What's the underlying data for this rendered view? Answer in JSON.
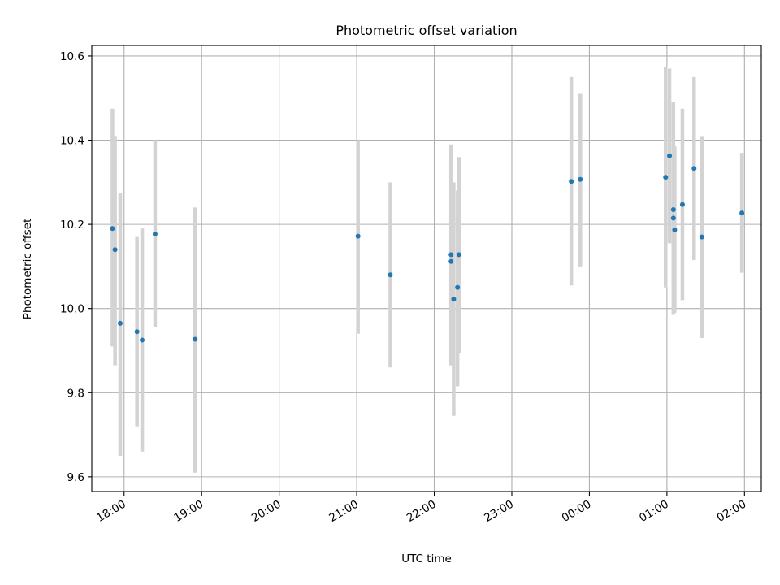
{
  "chart_data": {
    "type": "scatter",
    "title": "Photometric offset variation",
    "xlabel": "UTC time",
    "ylabel": "Photometric offset",
    "x_axis_type": "time",
    "x_ticks": [
      "18:00",
      "19:00",
      "20:00",
      "21:00",
      "22:00",
      "23:00",
      "00:00",
      "01:00",
      "02:00"
    ],
    "x_tick_values": [
      "18:00",
      "19:00",
      "20:00",
      "21:00",
      "22:00",
      "23:00",
      "24:00",
      "25:00",
      "26:00"
    ],
    "xlim": [
      "17:35",
      "26:13"
    ],
    "y_ticks": [
      9.6,
      9.8,
      10.0,
      10.2,
      10.4,
      10.6
    ],
    "ylim": [
      9.565,
      10.625
    ],
    "grid": true,
    "legend": "none",
    "colors": {
      "marker": "#1f77b4",
      "errorbar": "#d3d3d3",
      "grid": "#b0b0b0"
    },
    "series": [
      {
        "points": [
          {
            "x": "17:51",
            "y": 10.19,
            "ylow": 9.91,
            "yhigh": 10.475
          },
          {
            "x": "17:53",
            "y": 10.14,
            "ylow": 9.865,
            "yhigh": 10.41
          },
          {
            "x": "17:57",
            "y": 9.965,
            "ylow": 9.65,
            "yhigh": 10.275
          },
          {
            "x": "18:10",
            "y": 9.945,
            "ylow": 9.72,
            "yhigh": 10.17
          },
          {
            "x": "18:14",
            "y": 9.925,
            "ylow": 9.66,
            "yhigh": 10.19
          },
          {
            "x": "18:24",
            "y": 10.177,
            "ylow": 9.955,
            "yhigh": 10.4
          },
          {
            "x": "18:55",
            "y": 9.927,
            "ylow": 9.61,
            "yhigh": 10.24
          },
          {
            "x": "21:01",
            "y": 10.172,
            "ylow": 9.94,
            "yhigh": 10.4
          },
          {
            "x": "21:26",
            "y": 10.08,
            "ylow": 9.86,
            "yhigh": 10.3
          },
          {
            "x": "22:13",
            "y": 10.128,
            "ylow": 9.865,
            "yhigh": 10.39
          },
          {
            "x": "22:13",
            "y": 10.112,
            "ylow": 9.87,
            "yhigh": 10.36
          },
          {
            "x": "22:15",
            "y": 10.022,
            "ylow": 9.745,
            "yhigh": 10.3
          },
          {
            "x": "22:18",
            "y": 10.05,
            "ylow": 9.815,
            "yhigh": 10.28
          },
          {
            "x": "22:19",
            "y": 10.128,
            "ylow": 9.895,
            "yhigh": 10.36
          },
          {
            "x": "23:46",
            "y": 10.302,
            "ylow": 10.055,
            "yhigh": 10.55
          },
          {
            "x": "23:53",
            "y": 10.307,
            "ylow": 10.1,
            "yhigh": 10.51
          },
          {
            "x": "24:59",
            "y": 10.312,
            "ylow": 10.05,
            "yhigh": 10.575
          },
          {
            "x": "25:02",
            "y": 10.363,
            "ylow": 10.155,
            "yhigh": 10.57
          },
          {
            "x": "25:05",
            "y": 10.235,
            "ylow": 9.985,
            "yhigh": 10.49
          },
          {
            "x": "25:05",
            "y": 10.215,
            "ylow": 10.05,
            "yhigh": 10.38
          },
          {
            "x": "25:06",
            "y": 10.187,
            "ylow": 9.99,
            "yhigh": 10.385
          },
          {
            "x": "25:12",
            "y": 10.247,
            "ylow": 10.02,
            "yhigh": 10.475
          },
          {
            "x": "25:21",
            "y": 10.333,
            "ylow": 10.115,
            "yhigh": 10.55
          },
          {
            "x": "25:27",
            "y": 10.17,
            "ylow": 9.93,
            "yhigh": 10.41
          },
          {
            "x": "25:58",
            "y": 10.227,
            "ylow": 10.085,
            "yhigh": 10.37
          }
        ]
      }
    ]
  }
}
